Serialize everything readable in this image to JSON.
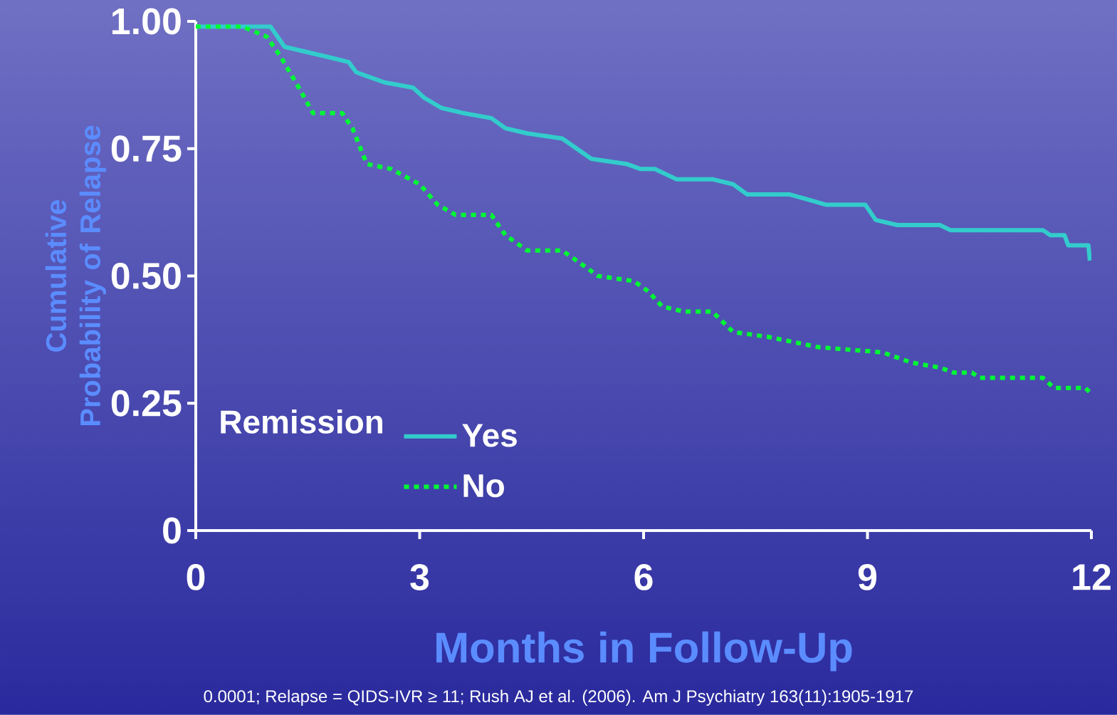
{
  "chart_data": {
    "type": "line",
    "xlabel": "Months in Follow-Up",
    "ylabel": "Cumulative Probability of Relapse",
    "legend_title": "Remission",
    "legend": "bottom left",
    "xlim": [
      0,
      12
    ],
    "ylim": [
      0,
      1
    ],
    "xticks": [
      0,
      3,
      6,
      9,
      12
    ],
    "yticks": [
      {
        "value": 0,
        "label": "0"
      },
      {
        "value": 0.25,
        "label": "0.25"
      },
      {
        "value": 0.5,
        "label": "0.50"
      },
      {
        "value": 0.75,
        "label": "0.75"
      },
      {
        "value": 1,
        "label": "1.00"
      }
    ],
    "series": [
      {
        "name": "Yes",
        "color": "#33cccc",
        "line_style": "solid",
        "x": [
          0,
          1.0,
          1.19,
          1.48,
          1.77,
          2.05,
          2.15,
          2.34,
          2.53,
          2.91,
          3.06,
          3.29,
          3.58,
          3.96,
          4.15,
          4.44,
          4.91,
          5.3,
          5.77,
          5.96,
          6.15,
          6.44,
          6.92,
          7.2,
          7.39,
          7.96,
          8.2,
          8.44,
          8.97,
          9.11,
          9.4,
          9.97,
          10.11,
          11.35,
          11.45,
          11.64,
          11.69,
          11.96,
          11.98
        ],
        "values": [
          0.99,
          0.99,
          0.95,
          0.94,
          0.93,
          0.92,
          0.9,
          0.89,
          0.88,
          0.87,
          0.85,
          0.83,
          0.82,
          0.81,
          0.79,
          0.78,
          0.77,
          0.73,
          0.72,
          0.71,
          0.71,
          0.69,
          0.69,
          0.68,
          0.66,
          0.66,
          0.65,
          0.64,
          0.64,
          0.61,
          0.6,
          0.6,
          0.59,
          0.59,
          0.58,
          0.58,
          0.56,
          0.56,
          0.53
        ]
      },
      {
        "name": "No",
        "color": "#00ff33",
        "line_style": "dotted",
        "x": [
          0,
          0.62,
          0.95,
          1.14,
          1.38,
          1.57,
          1.96,
          2.1,
          2.29,
          2.62,
          3.0,
          3.24,
          3.48,
          3.96,
          4.15,
          4.44,
          4.91,
          5.2,
          5.39,
          5.87,
          6.06,
          6.25,
          6.54,
          6.92,
          7.2,
          7.68,
          8.35,
          9.2,
          9.59,
          9.97,
          10.16,
          10.4,
          10.5,
          11.35,
          11.5,
          11.92,
          11.99
        ],
        "values": [
          0.99,
          0.99,
          0.97,
          0.93,
          0.87,
          0.82,
          0.82,
          0.79,
          0.72,
          0.71,
          0.68,
          0.64,
          0.62,
          0.62,
          0.58,
          0.55,
          0.55,
          0.52,
          0.5,
          0.49,
          0.47,
          0.44,
          0.43,
          0.43,
          0.39,
          0.38,
          0.36,
          0.35,
          0.33,
          0.32,
          0.31,
          0.31,
          0.3,
          0.3,
          0.28,
          0.28,
          0.27
        ]
      }
    ],
    "annotations": [
      "0.0001; Relapse = QIDS-IVR ≥ 11; Rush AJ et al. (2006). Am J Psychiatry 163(11):1905-1917"
    ]
  }
}
